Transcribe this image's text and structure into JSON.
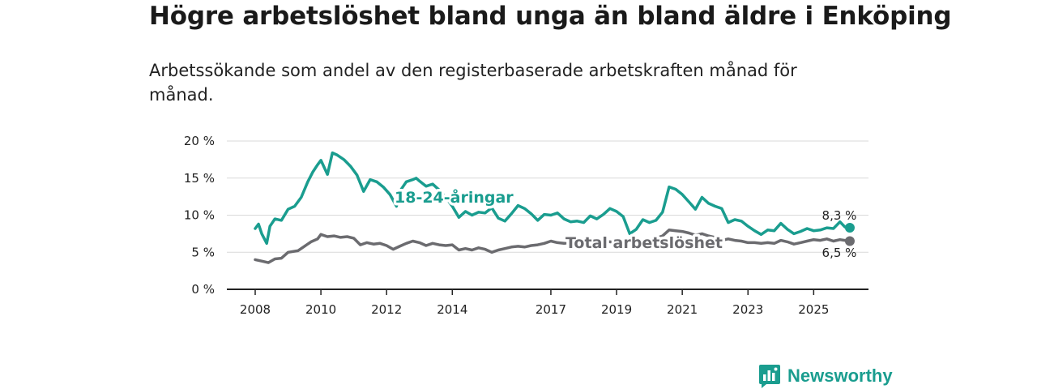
{
  "header": {
    "title": "Högre arbetslöshet bland unga än bland äldre i Enköping",
    "subtitle": "Arbetssökande som andel av den registerbaserade arbetskraften månad för månad."
  },
  "brand": {
    "name": "Newsworthy",
    "icon": "newsworthy-logo-icon"
  },
  "colors": {
    "youth": "#1a9d8f",
    "total": "#6b6b6f",
    "grid": "#d9d9d9",
    "axis": "#222222"
  },
  "chart_data": {
    "type": "line",
    "title": "Högre arbetslöshet bland unga än bland äldre i Enköping",
    "subtitle": "Arbetssökande som andel av den registerbaserade arbetskraften månad för månad.",
    "xlabel": "",
    "ylabel": "",
    "ylim": [
      0,
      20
    ],
    "xlim": [
      2007.8,
      2027.2
    ],
    "yticks": [
      0,
      5,
      10,
      15,
      20
    ],
    "ytick_labels": [
      "0 %",
      "5 %",
      "10 %",
      "15 %",
      "20 %"
    ],
    "xticks": [
      2008,
      2010,
      2012,
      2014,
      2017,
      2019,
      2021,
      2023,
      2025
    ],
    "xtick_labels": [
      "2008",
      "2010",
      "2012",
      "2014",
      "2017",
      "2019",
      "2021",
      "2023",
      "2025"
    ],
    "grid": true,
    "series": [
      {
        "name": "18-24-åringar",
        "label": "18-24-åringar",
        "end_label": "8,3 %",
        "x": [
          2008.0,
          2008.1,
          2008.2,
          2008.35,
          2008.45,
          2008.6,
          2008.8,
          2009.0,
          2009.2,
          2009.4,
          2009.6,
          2009.75,
          2009.9,
          2010.0,
          2010.2,
          2010.35,
          2010.5,
          2010.7,
          2010.9,
          2011.1,
          2011.3,
          2011.5,
          2011.7,
          2011.9,
          2012.1,
          2012.3,
          2012.4,
          2012.6,
          2012.8,
          2012.9,
          2013.0,
          2013.2,
          2013.4,
          2013.6,
          2013.8,
          2014.0,
          2014.2,
          2014.4,
          2014.6,
          2014.8,
          2015.0,
          2015.2,
          2015.4,
          2015.6,
          2015.8,
          2016.0,
          2016.2,
          2016.4,
          2016.6,
          2016.8,
          2017.0,
          2017.2,
          2017.4,
          2017.6,
          2017.8,
          2018.0,
          2018.2,
          2018.4,
          2018.6,
          2018.8,
          2019.0,
          2019.2,
          2019.4,
          2019.6,
          2019.8,
          2020.0,
          2020.2,
          2020.4,
          2020.6,
          2020.8,
          2021.0,
          2021.2,
          2021.4,
          2021.6,
          2021.8,
          2022.0,
          2022.2,
          2022.4,
          2022.6,
          2022.8,
          2023.0,
          2023.2,
          2023.4,
          2023.6,
          2023.8,
          2024.0,
          2024.2,
          2024.4,
          2024.6,
          2024.8,
          2025.0,
          2025.2,
          2025.4,
          2025.6,
          2025.8,
          2025.95,
          2026.1
        ],
        "values": [
          8.2,
          8.8,
          7.5,
          6.2,
          8.5,
          9.5,
          9.3,
          10.8,
          11.2,
          12.4,
          14.5,
          15.8,
          16.8,
          17.4,
          15.5,
          18.4,
          18.1,
          17.5,
          16.6,
          15.4,
          13.2,
          14.8,
          14.5,
          13.8,
          12.8,
          11.2,
          13.2,
          14.5,
          14.8,
          15.0,
          14.6,
          13.9,
          14.2,
          13.4,
          12.4,
          11.2,
          9.7,
          10.5,
          10.0,
          10.4,
          10.3,
          11.0,
          9.6,
          9.2,
          10.2,
          11.3,
          10.9,
          10.2,
          9.3,
          10.1,
          10.0,
          10.3,
          9.5,
          9.1,
          9.2,
          9.0,
          9.9,
          9.5,
          10.1,
          10.9,
          10.5,
          9.8,
          7.5,
          8.1,
          9.4,
          9.0,
          9.3,
          10.4,
          13.8,
          13.5,
          12.8,
          11.8,
          10.8,
          12.4,
          11.6,
          11.2,
          10.9,
          9.0,
          9.4,
          9.2,
          8.5,
          7.9,
          7.4,
          8.0,
          7.9,
          8.9,
          8.1,
          7.5,
          7.8,
          8.2,
          7.9,
          8.0,
          8.3,
          8.2,
          9.1,
          8.4,
          8.3
        ]
      },
      {
        "name": "Total arbetslöshet",
        "label": "Total arbetslöshet",
        "end_label": "6,5 %",
        "x": [
          2008.0,
          2008.2,
          2008.4,
          2008.6,
          2008.8,
          2009.0,
          2009.3,
          2009.5,
          2009.7,
          2009.9,
          2010.0,
          2010.2,
          2010.4,
          2010.6,
          2010.8,
          2011.0,
          2011.2,
          2011.4,
          2011.6,
          2011.8,
          2012.0,
          2012.2,
          2012.4,
          2012.6,
          2012.8,
          2013.0,
          2013.2,
          2013.4,
          2013.6,
          2013.8,
          2014.0,
          2014.2,
          2014.4,
          2014.6,
          2014.8,
          2015.0,
          2015.2,
          2015.4,
          2015.6,
          2015.8,
          2016.0,
          2016.2,
          2016.4,
          2016.6,
          2016.8,
          2017.0,
          2017.2,
          2017.4,
          2017.6,
          2017.8,
          2018.0,
          2018.2,
          2018.4,
          2018.6,
          2018.8,
          2019.0,
          2019.2,
          2019.4,
          2019.6,
          2019.8,
          2020.0,
          2020.2,
          2020.4,
          2020.6,
          2020.8,
          2021.0,
          2021.2,
          2021.4,
          2021.6,
          2021.8,
          2022.0,
          2022.2,
          2022.4,
          2022.6,
          2022.8,
          2023.0,
          2023.2,
          2023.4,
          2023.6,
          2023.8,
          2024.0,
          2024.2,
          2024.4,
          2024.6,
          2024.8,
          2025.0,
          2025.2,
          2025.4,
          2025.6,
          2025.8,
          2025.95,
          2026.1
        ],
        "values": [
          4.0,
          3.8,
          3.6,
          4.1,
          4.2,
          5.0,
          5.2,
          5.8,
          6.4,
          6.8,
          7.4,
          7.1,
          7.2,
          7.0,
          7.1,
          6.9,
          6.0,
          6.3,
          6.1,
          6.2,
          5.9,
          5.4,
          5.8,
          6.2,
          6.5,
          6.3,
          5.9,
          6.2,
          6.0,
          5.9,
          6.0,
          5.3,
          5.5,
          5.3,
          5.6,
          5.4,
          5.0,
          5.3,
          5.5,
          5.7,
          5.8,
          5.7,
          5.9,
          6.0,
          6.2,
          6.5,
          6.3,
          6.2,
          6.3,
          6.4,
          6.3,
          6.5,
          6.6,
          6.6,
          6.4,
          6.3,
          6.2,
          6.4,
          6.5,
          6.6,
          6.7,
          6.9,
          7.2,
          8.0,
          7.9,
          7.8,
          7.6,
          7.3,
          7.5,
          7.2,
          7.0,
          6.6,
          6.8,
          6.6,
          6.5,
          6.3,
          6.3,
          6.2,
          6.3,
          6.2,
          6.6,
          6.4,
          6.1,
          6.3,
          6.5,
          6.7,
          6.6,
          6.8,
          6.5,
          6.7,
          6.6,
          6.5
        ]
      }
    ],
    "annotations": [
      "18-24-åringar",
      "Total arbetslöshet",
      "8,3 %",
      "6,5 %"
    ]
  }
}
